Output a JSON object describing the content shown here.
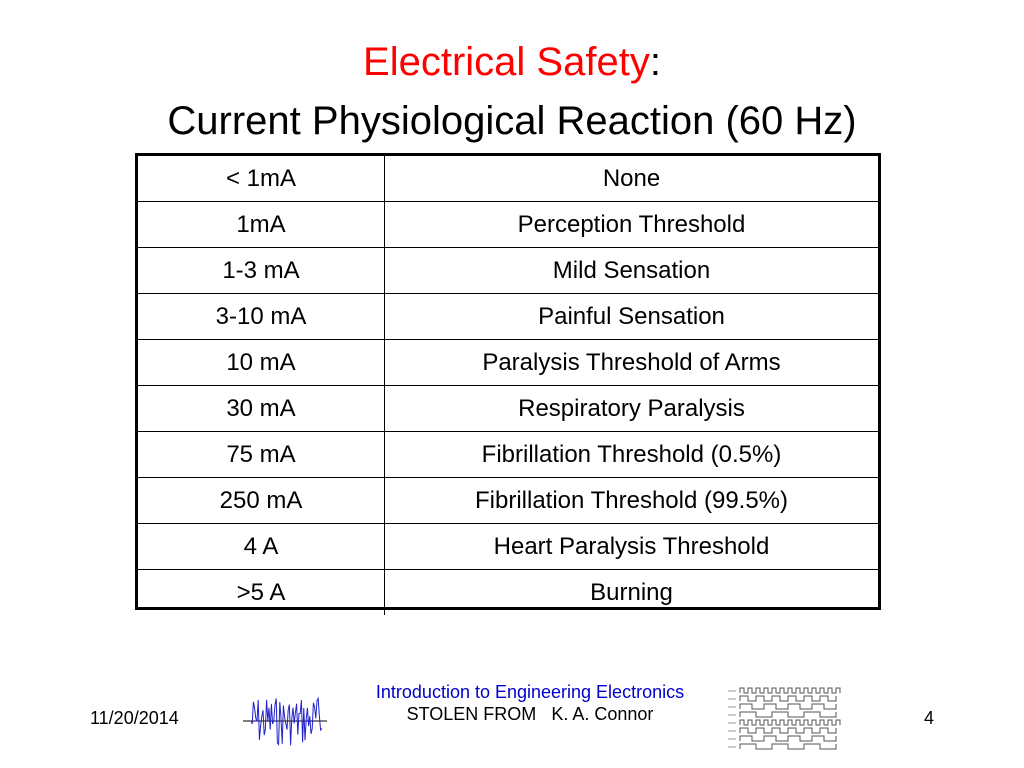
{
  "title": {
    "red_part": "Electrical Safety",
    "colon": ":",
    "line2": "Current Physiological Reaction (60 Hz)"
  },
  "table": {
    "rows": [
      {
        "current": "< 1mA",
        "reaction": "None"
      },
      {
        "current": "1mA",
        "reaction": "Perception Threshold"
      },
      {
        "current": "1-3 mA",
        "reaction": "Mild Sensation"
      },
      {
        "current": "3-10 mA",
        "reaction": "Painful Sensation"
      },
      {
        "current": "10 mA",
        "reaction": "Paralysis Threshold of Arms"
      },
      {
        "current": "30 mA",
        "reaction": "Respiratory Paralysis"
      },
      {
        "current": "75 mA",
        "reaction": "Fibrillation Threshold (0.5%)"
      },
      {
        "current": "250 mA",
        "reaction": "Fibrillation Threshold (99.5%)"
      },
      {
        "current": "4 A",
        "reaction": "Heart Paralysis Threshold"
      },
      {
        "current": ">5 A",
        "reaction": "Burning"
      }
    ]
  },
  "footer": {
    "date": "11/20/2014",
    "course": "Introduction to Engineering Electronics",
    "stolen_label": "STOLEN FROM",
    "author": "K. A. Connor",
    "page_number": "4"
  },
  "colors": {
    "title_accent": "#ff0000",
    "link": "#0000cc",
    "noise_signal": "#2222cc"
  },
  "icons": [
    "noise-signal-graphic",
    "timing-diagram-graphic"
  ]
}
